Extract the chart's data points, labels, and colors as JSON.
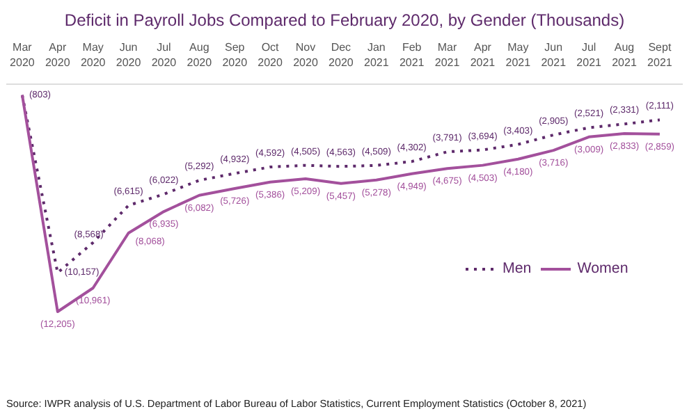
{
  "chart_data": {
    "type": "line",
    "title": "Deficit in Payroll Jobs Compared to February 2020, by Gender (Thousands)",
    "categories": [
      "Mar 2020",
      "Apr 2020",
      "May 2020",
      "Jun 2020",
      "Jul 2020",
      "Aug 2020",
      "Sep 2020",
      "Oct 2020",
      "Nov 2020",
      "Dec 2020",
      "Jan 2021",
      "Feb 2021",
      "Mar 2021",
      "Apr 2021",
      "May 2021",
      "Jun 2021",
      "Jul 2021",
      "Aug 2021",
      "Sept 2021"
    ],
    "series": [
      {
        "name": "Men",
        "color": "#5e2a6b",
        "line_style": "dotted",
        "values": [
          -803,
          -10157,
          -8568,
          -6615,
          -6022,
          -5292,
          -4932,
          -4592,
          -4505,
          -4563,
          -4509,
          -4302,
          -3791,
          -3694,
          -3403,
          -2905,
          -2521,
          -2331,
          -2111
        ],
        "value_labels": [
          "(803)",
          "(10,157)",
          "(8,568)",
          "(6,615)",
          "(6,022)",
          "(5,292)",
          "(4,932)",
          "(4,592)",
          "(4,505)",
          "(4,563)",
          "(4,509)",
          "(4,302)",
          "(3,791)",
          "(3,694)",
          "(3,403)",
          "(2,905)",
          "(2,521)",
          "(2,331)",
          "(2,111)"
        ]
      },
      {
        "name": "Women",
        "color": "#a3509c",
        "line_style": "solid",
        "values": [
          -803,
          -12205,
          -10961,
          -8068,
          -6935,
          -6082,
          -5726,
          -5386,
          -5209,
          -5457,
          -5278,
          -4949,
          -4675,
          -4503,
          -4180,
          -3716,
          -3009,
          -2833,
          -2859
        ],
        "value_labels": [
          null,
          "(12,205)",
          "(10,961)",
          "(8,068)",
          "(6,935)",
          "(6,082)",
          "(5,726)",
          "(5,386)",
          "(5,209)",
          "(5,457)",
          "(5,278)",
          "(4,949)",
          "(4,675)",
          "(4,503)",
          "(4,180)",
          "(3,716)",
          "(3,009)",
          "(2,833)",
          "(2,859)"
        ]
      }
    ],
    "legend": "right",
    "grid": false,
    "marker": "none",
    "tick_labels": "x",
    "annotations": [
      "Source: IWPR analysis of U.S. Department of Labor Bureau of Labor Statistics, Current Employment Statistics (October 8, 2021)"
    ]
  }
}
